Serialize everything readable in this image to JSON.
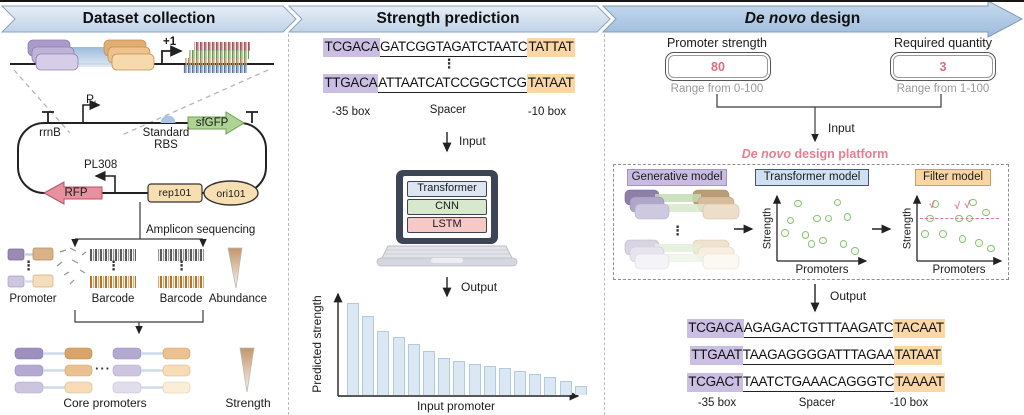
{
  "banner": {
    "steps": [
      {
        "label": "Dataset collection"
      },
      {
        "label": "Strength prediction"
      },
      {
        "italic": "De novo",
        "rest": " design"
      }
    ],
    "accent_light": "#c0d3e8",
    "accent_dark": "#9dbcdc"
  },
  "glyphs": {
    "vdots": "⋮",
    "hdots": "···",
    "check": "√",
    "plus_one": "+1"
  },
  "panel1": {
    "plasmid": {
      "rrnb": "rrnB",
      "pl_main": "P",
      "pl_sub": "L",
      "rbs_line1": "Standard",
      "rbs_line2": "RBS",
      "sfgfp": "sfGFP",
      "pl308": "PL308",
      "rfp": "RFP",
      "rep": "rep101",
      "ori": "ori101"
    },
    "amplicon": "Amplicon sequencing",
    "labels": {
      "promoter": "Promoter",
      "barcode1": "Barcode",
      "barcode2": "Barcode",
      "abundance": "Abundance",
      "core": "Core promoters",
      "strength": "Strength"
    }
  },
  "seq_labels": {
    "m35": "-35 box",
    "spacer": "Spacer",
    "m10": "-10 box"
  },
  "panel2": {
    "sequences": [
      {
        "m35": "TCGACA",
        "spacer": "GATCGGTAGATCTAATC",
        "m10": "TATTAT"
      },
      {
        "m35": "TTGACA",
        "spacer": "ATTAATCATCCGGCTCG",
        "m10": "TATAAT"
      }
    ],
    "input": "Input",
    "output": "Output",
    "models": [
      {
        "label": "Transformer",
        "bg": "#dce6f2"
      },
      {
        "label": "CNN",
        "bg": "#d8e8cd"
      },
      {
        "label": "LSTM",
        "bg": "#f6c9c6"
      }
    ]
  },
  "panel3": {
    "inputs": [
      {
        "label": "Promoter strength",
        "value": "80",
        "range": "Range from 0-100"
      },
      {
        "label": "Required quantity",
        "value": "3",
        "range": "Range from 1-100"
      }
    ],
    "input": "Input",
    "output": "Output",
    "platform": {
      "italic": "De novo",
      "rest": " design platform",
      "color": "#e87d90"
    },
    "stages": [
      {
        "label": "Generative model",
        "bg": "#c9bce2",
        "border": "#a395c6"
      },
      {
        "label": "Transformer model",
        "bg": "#cfe0f2",
        "border": "#42546e"
      },
      {
        "label": "Filter model",
        "bg": "#f8d5a3",
        "border": "#caa05a"
      }
    ],
    "sequences": [
      {
        "m35": "TCGACA",
        "spacer": "AGAGACTGTTTAAGATC",
        "m10": "TACAAT"
      },
      {
        "m35": "TTGAAT",
        "spacer": "TAAGAGGGGATTTAGAA",
        "m10": "TATAAT"
      },
      {
        "m35": "TCGACT",
        "spacer": "TAATCTGAAACAGGGTC",
        "m10": "TAAAAT"
      }
    ]
  },
  "chart_data": [
    {
      "type": "bar",
      "title": "",
      "xlabel": "Input promoter",
      "ylabel": "Predicted strength",
      "values": [
        96,
        82,
        66,
        60,
        53,
        45,
        38,
        35,
        32,
        29,
        27,
        24,
        21,
        18,
        14,
        8
      ],
      "ylim": [
        0,
        100
      ],
      "bar_color": "#dbe7f3",
      "note": "descending unlabeled bars"
    },
    {
      "type": "scatter",
      "title": "Transformer model output",
      "xlabel": "Promoters",
      "ylabel": "Strength",
      "point_color": "#8fbf7d",
      "points": [
        [
          0.2,
          0.93
        ],
        [
          0.72,
          0.95
        ],
        [
          0.1,
          0.62
        ],
        [
          0.45,
          0.65
        ],
        [
          0.6,
          0.65
        ],
        [
          0.85,
          0.68
        ],
        [
          0.03,
          0.38
        ],
        [
          0.3,
          0.35
        ],
        [
          0.38,
          0.18
        ],
        [
          0.53,
          0.25
        ],
        [
          0.8,
          0.18
        ],
        [
          0.95,
          0.05
        ]
      ]
    },
    {
      "type": "scatter",
      "title": "Filter model output",
      "xlabel": "Promoters",
      "ylabel": "Strength",
      "point_color": "#8fbf7d",
      "threshold": 0.65,
      "threshold_color": "#d9788c",
      "points": [
        [
          0.18,
          0.92
        ],
        [
          0.7,
          0.95
        ],
        [
          0.88,
          0.76
        ],
        [
          0.1,
          0.65
        ],
        [
          0.5,
          0.65
        ],
        [
          0.65,
          0.65
        ],
        [
          0.03,
          0.37
        ],
        [
          0.28,
          0.37
        ],
        [
          0.55,
          0.27
        ],
        [
          0.78,
          0.2
        ],
        [
          0.95,
          0.1
        ]
      ],
      "checks": [
        [
          0.17,
          0.82
        ],
        [
          0.52,
          0.8
        ],
        [
          0.66,
          0.82
        ]
      ]
    }
  ]
}
